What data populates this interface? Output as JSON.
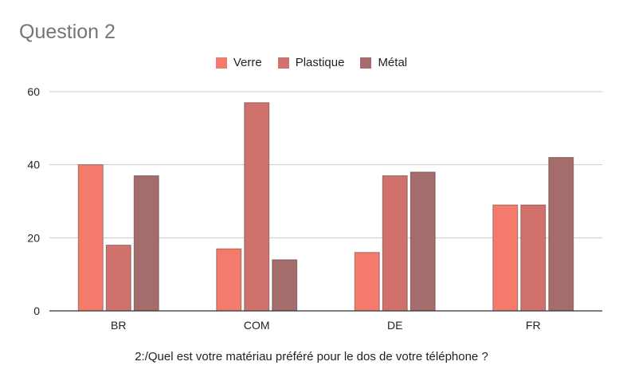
{
  "chart_data": {
    "type": "bar",
    "title": "Question 2",
    "xlabel": "2:/Quel est votre matériau préféré pour le dos de votre téléphone ?",
    "ylabel": "",
    "categories": [
      "BR",
      "COM",
      "DE",
      "FR"
    ],
    "series": [
      {
        "name": "Verre",
        "color": "#f47b6b",
        "values": [
          40,
          17,
          16,
          29
        ]
      },
      {
        "name": "Plastique",
        "color": "#d0716b",
        "values": [
          18,
          57,
          37,
          29
        ]
      },
      {
        "name": "Métal",
        "color": "#a56c6c",
        "values": [
          37,
          14,
          38,
          42
        ]
      }
    ],
    "ylim": [
      0,
      60
    ],
    "yticks": [
      0,
      20,
      40,
      60
    ],
    "grid": true,
    "legend_position": "top"
  }
}
